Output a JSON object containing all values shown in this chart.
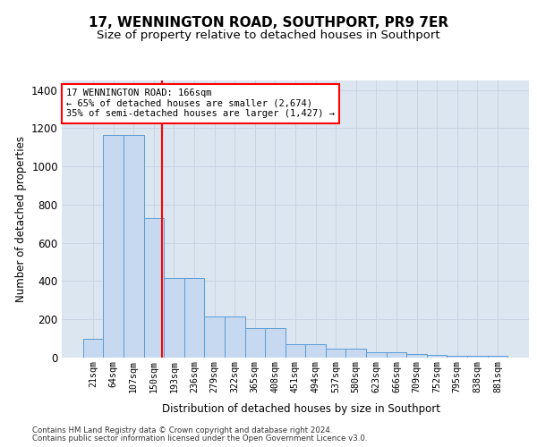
{
  "title": "17, WENNINGTON ROAD, SOUTHPORT, PR9 7ER",
  "subtitle": "Size of property relative to detached houses in Southport",
  "xlabel": "Distribution of detached houses by size in Southport",
  "ylabel": "Number of detached properties",
  "categories": [
    "21sqm",
    "64sqm",
    "107sqm",
    "150sqm",
    "193sqm",
    "236sqm",
    "279sqm",
    "322sqm",
    "365sqm",
    "408sqm",
    "451sqm",
    "494sqm",
    "537sqm",
    "580sqm",
    "623sqm",
    "666sqm",
    "709sqm",
    "752sqm",
    "795sqm",
    "838sqm",
    "881sqm"
  ],
  "bar_heights": [
    100,
    1165,
    1165,
    730,
    415,
    415,
    215,
    215,
    155,
    155,
    70,
    70,
    48,
    48,
    30,
    30,
    18,
    15,
    10,
    10,
    8
  ],
  "bar_color": "#c6d9f0",
  "bar_edge_color": "#5b9bd5",
  "grid_color": "#c8d4e3",
  "bg_color": "#dce6f1",
  "vline_color": "red",
  "vline_x_index": 3.42,
  "annotation_text": "17 WENNINGTON ROAD: 166sqm\n← 65% of detached houses are smaller (2,674)\n35% of semi-detached houses are larger (1,427) →",
  "footer_line1": "Contains HM Land Registry data © Crown copyright and database right 2024.",
  "footer_line2": "Contains public sector information licensed under the Open Government Licence v3.0.",
  "ylim": [
    0,
    1450
  ],
  "yticks": [
    0,
    200,
    400,
    600,
    800,
    1000,
    1200,
    1400
  ]
}
